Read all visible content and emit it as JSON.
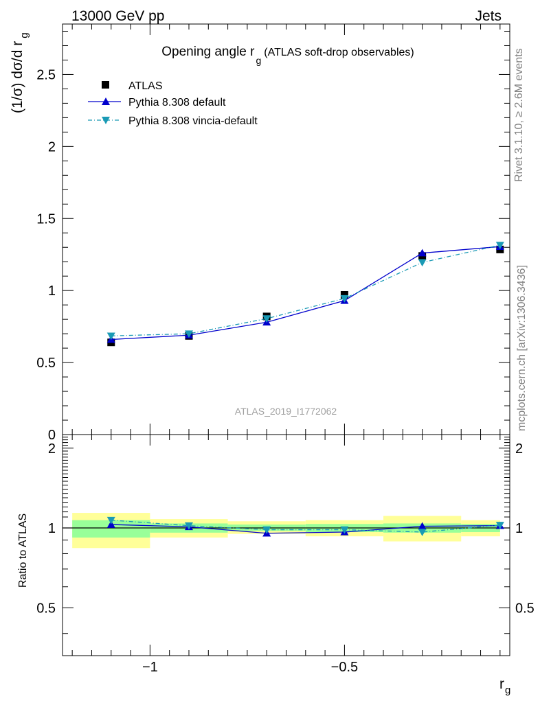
{
  "header": {
    "energy_label": "13000 GeV pp",
    "process_label": "Jets"
  },
  "side_labels": {
    "rivet_version": "Rivet 3.1.10, ≥ 2.6M events",
    "source": "mcplots.cern.ch [arXiv:1306.3436]"
  },
  "chart_data": [
    {
      "type": "line",
      "panel": "main",
      "title": "Opening angle r",
      "title_subscript": "g",
      "title_note": "(ATLAS soft-drop observables)",
      "ylabel": "(1/σ) dσ/d r",
      "ylabel_subscript": "g",
      "analysis_label": "ATLAS_2019_I1772062",
      "xlim": [
        -1.225,
        -0.075
      ],
      "ylim": [
        0,
        2.85
      ],
      "y_ticks": [
        0,
        0.5,
        1,
        1.5,
        2,
        2.5
      ],
      "y_tick_labels": [
        "0",
        "0.5",
        "1",
        "1.5",
        "2",
        "2.5"
      ],
      "legend_position": "top-left",
      "series": [
        {
          "name": "ATLAS",
          "marker": "square",
          "color": "#000000",
          "x": [
            -1.1,
            -0.9,
            -0.7,
            -0.5,
            -0.3,
            -0.1
          ],
          "y": [
            0.64,
            0.685,
            0.82,
            0.97,
            1.24,
            1.285
          ]
        },
        {
          "name": "Pythia 8.308 default",
          "marker": "triangle-up",
          "line": "solid",
          "color": "#0000cc",
          "x": [
            -1.1,
            -0.9,
            -0.7,
            -0.5,
            -0.3,
            -0.1
          ],
          "y": [
            0.66,
            0.69,
            0.78,
            0.93,
            1.26,
            1.305
          ]
        },
        {
          "name": "Pythia 8.308 vincia-default",
          "marker": "triangle-down",
          "line": "dash-dot",
          "color": "#1a9ab5",
          "x": [
            -1.1,
            -0.9,
            -0.7,
            -0.5,
            -0.3,
            -0.1
          ],
          "y": [
            0.685,
            0.7,
            0.805,
            0.945,
            1.195,
            1.315
          ]
        }
      ]
    },
    {
      "type": "line",
      "panel": "ratio",
      "ylabel": "Ratio to ATLAS",
      "xlabel": "r",
      "xlabel_subscript": "g",
      "xlim": [
        -1.225,
        -0.075
      ],
      "ylim": [
        0.33,
        2.25
      ],
      "x_ticks": [
        -1,
        -0.5
      ],
      "x_tick_labels": [
        "−1",
        "−0.5"
      ],
      "y_ticks": [
        0.5,
        1,
        2
      ],
      "y_tick_labels": [
        "0.5",
        "1",
        "2"
      ],
      "bins": [
        -1.2,
        -1.0,
        -0.8,
        -0.6,
        -0.4,
        -0.2,
        -0.1
      ],
      "band_outer": [
        [
          0.84,
          1.14
        ],
        [
          0.92,
          1.08
        ],
        [
          0.95,
          1.06
        ],
        [
          0.93,
          1.07
        ],
        [
          0.89,
          1.11
        ],
        [
          0.93,
          1.07
        ]
      ],
      "band_inner": [
        [
          0.92,
          1.07
        ],
        [
          0.96,
          1.04
        ],
        [
          0.975,
          1.03
        ],
        [
          0.965,
          1.035
        ],
        [
          0.96,
          1.04
        ],
        [
          0.965,
          1.035
        ]
      ],
      "band_colors": {
        "outer": "#ffff99",
        "inner": "#99ff99"
      },
      "series": [
        {
          "name": "Pythia 8.308 default",
          "marker": "triangle-up",
          "line": "solid",
          "color": "#0000cc",
          "x": [
            -1.1,
            -0.9,
            -0.7,
            -0.5,
            -0.3,
            -0.1
          ],
          "y": [
            1.03,
            1.01,
            0.955,
            0.965,
            1.015,
            1.02
          ]
        },
        {
          "name": "Pythia 8.308 vincia-default",
          "marker": "triangle-down",
          "line": "dash-dot",
          "color": "#1a9ab5",
          "x": [
            -1.1,
            -0.9,
            -0.7,
            -0.5,
            -0.3,
            -0.1
          ],
          "y": [
            1.07,
            1.02,
            0.985,
            0.985,
            0.965,
            1.025
          ]
        }
      ]
    }
  ]
}
